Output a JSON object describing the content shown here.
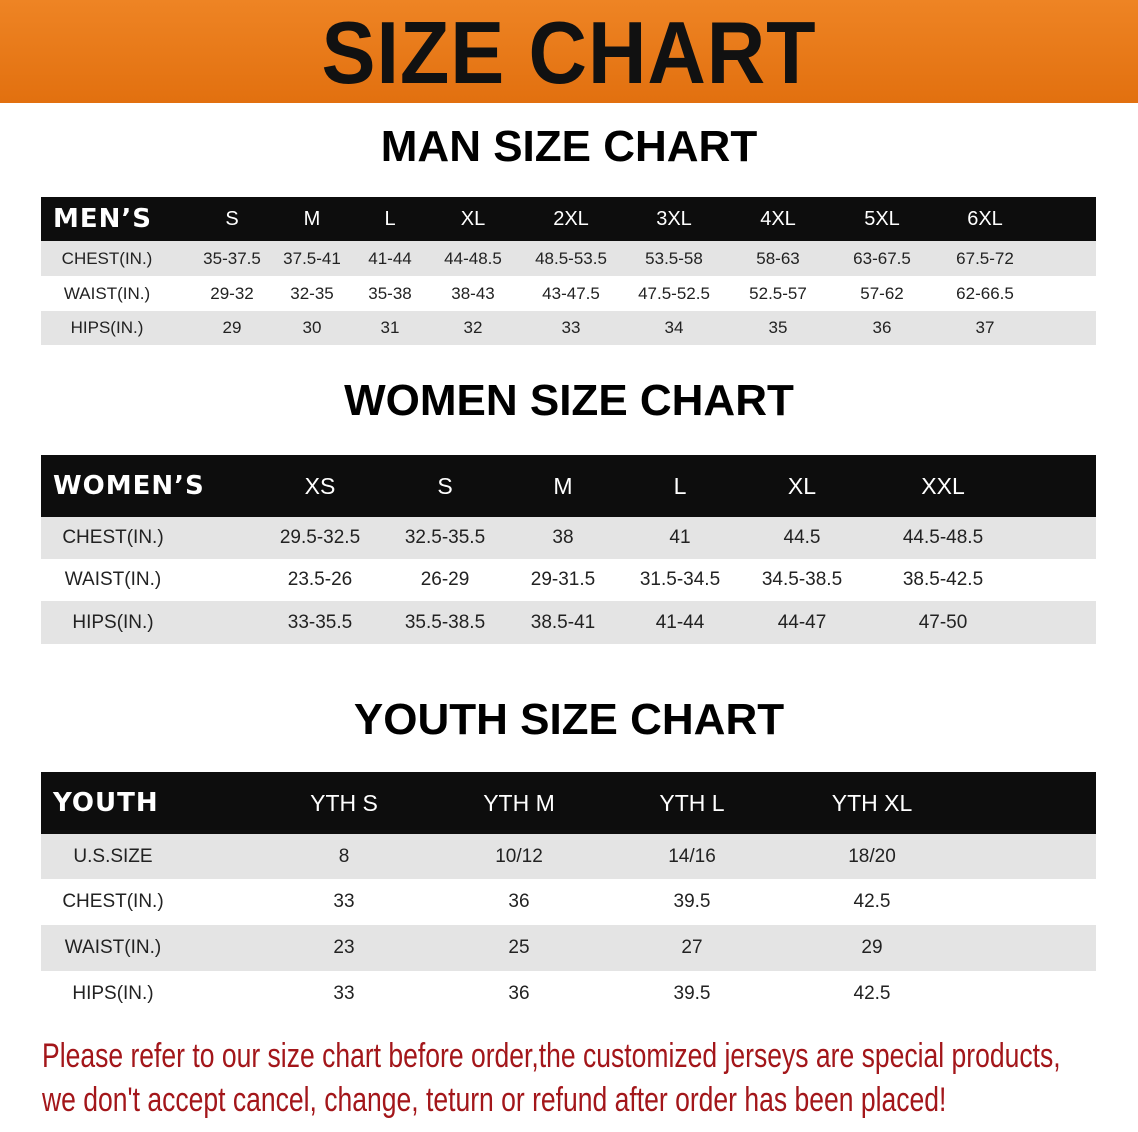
{
  "banner": {
    "title": "SIZE CHART",
    "color": "#e8781a"
  },
  "men": {
    "title": "MAN SIZE CHART",
    "header": "MEN’S",
    "sizes": [
      "S",
      "M",
      "L",
      "XL",
      "2XL",
      "3XL",
      "4XL",
      "5XL",
      "6XL"
    ],
    "rows": [
      {
        "label": "CHEST(IN.)",
        "values": [
          "35-37.5",
          "37.5-41",
          "41-44",
          "44-48.5",
          "48.5-53.5",
          "53.5-58",
          "58-63",
          "63-67.5",
          "67.5-72"
        ]
      },
      {
        "label": "WAIST(IN.)",
        "values": [
          "29-32",
          "32-35",
          "35-38",
          "38-43",
          "43-47.5",
          "47.5-52.5",
          "52.5-57",
          "57-62",
          "62-66.5"
        ]
      },
      {
        "label": "HIPS(IN.)",
        "values": [
          "29",
          "30",
          "31",
          "32",
          "33",
          "34",
          "35",
          "36",
          "37"
        ]
      }
    ]
  },
  "women": {
    "title": "WOMEN SIZE CHART",
    "header": "WOMEN’S",
    "sizes": [
      "XS",
      "S",
      "M",
      "L",
      "XL",
      "XXL"
    ],
    "rows": [
      {
        "label": "CHEST(IN.)",
        "values": [
          "29.5-32.5",
          "32.5-35.5",
          "38",
          "41",
          "44.5",
          "44.5-48.5"
        ]
      },
      {
        "label": "WAIST(IN.)",
        "values": [
          "23.5-26",
          "26-29",
          "29-31.5",
          "31.5-34.5",
          "34.5-38.5",
          "38.5-42.5"
        ]
      },
      {
        "label": "HIPS(IN.)",
        "values": [
          "33-35.5",
          "35.5-38.5",
          "38.5-41",
          "41-44",
          "44-47",
          "47-50"
        ]
      }
    ]
  },
  "youth": {
    "title": "YOUTH SIZE CHART",
    "header": "YOUTH",
    "sizes": [
      "YTH S",
      "YTH M",
      "YTH L",
      "YTH XL"
    ],
    "rows": [
      {
        "label": "U.S.SIZE",
        "values": [
          "8",
          "10/12",
          "14/16",
          "18/20"
        ]
      },
      {
        "label": "CHEST(IN.)",
        "values": [
          "33",
          "36",
          "39.5",
          "42.5"
        ]
      },
      {
        "label": "WAIST(IN.)",
        "values": [
          "23",
          "25",
          "27",
          "29"
        ]
      },
      {
        "label": "HIPS(IN.)",
        "values": [
          "33",
          "36",
          "39.5",
          "42.5"
        ]
      }
    ]
  },
  "notice": {
    "line1": "Please refer to our size chart before order,the customized jerseys are special products,",
    "line2": "we don't accept cancel, change, teturn or refund after order has been placed!",
    "color": "#a3161a"
  }
}
